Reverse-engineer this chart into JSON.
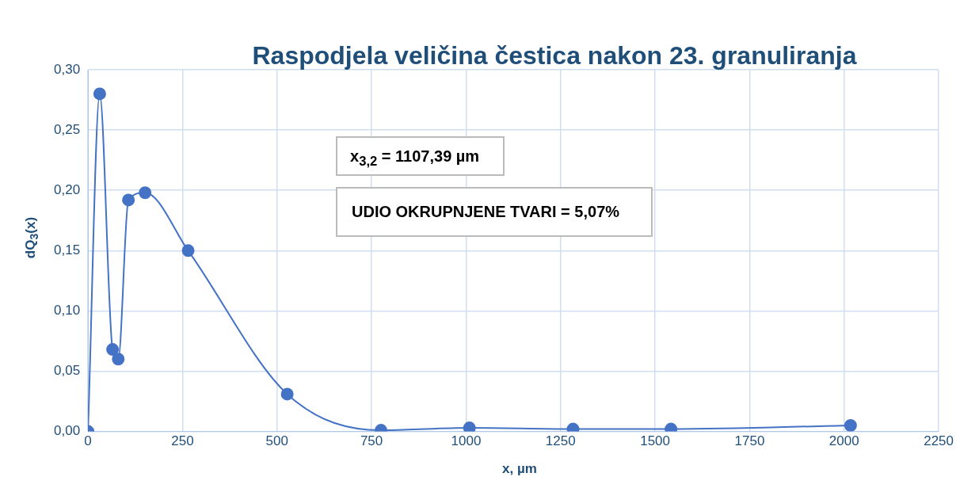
{
  "chart_data": {
    "type": "line",
    "title": "Raspodjela veličina čestica nakon 23. granuliranja",
    "xlabel": "x, µm",
    "ylabel": "dQ$_{3}$(x)",
    "annotations": [
      "x$_{3,2}$ = 1107,39 µm",
      "UDIO OKRUPNJENE TVARI = 5,07%"
    ],
    "x": [
      0,
      31,
      65,
      80,
      107,
      151,
      265,
      527,
      775,
      1009,
      1283,
      1542,
      2017
    ],
    "series": [
      {
        "color": "#4472c4",
        "values": [
          0,
          0.28,
          0.068,
          0.06,
          0.192,
          0.198,
          0.15,
          0.031,
          0.001,
          0.003,
          0.002,
          0.002,
          0.005
        ]
      }
    ],
    "xlim": [
      0,
      2250
    ],
    "xticks": [
      0,
      250,
      500,
      750,
      1000,
      1250,
      1500,
      1750,
      2000,
      2250
    ],
    "ylim": [
      0,
      0.3
    ],
    "yticks": [
      {
        "value": 0,
        "label": "0,00"
      },
      {
        "value": 0.05,
        "label": "0,05"
      },
      {
        "value": 0.1,
        "label": "0,10"
      },
      {
        "value": 0.15,
        "label": "0,15"
      },
      {
        "value": 0.2,
        "label": "0,20"
      },
      {
        "value": 0.25,
        "label": "0,25"
      },
      {
        "value": 0.3,
        "label": "0,30"
      }
    ],
    "grid": true,
    "legend": false,
    "marker": "circle",
    "line_style": "solid"
  }
}
